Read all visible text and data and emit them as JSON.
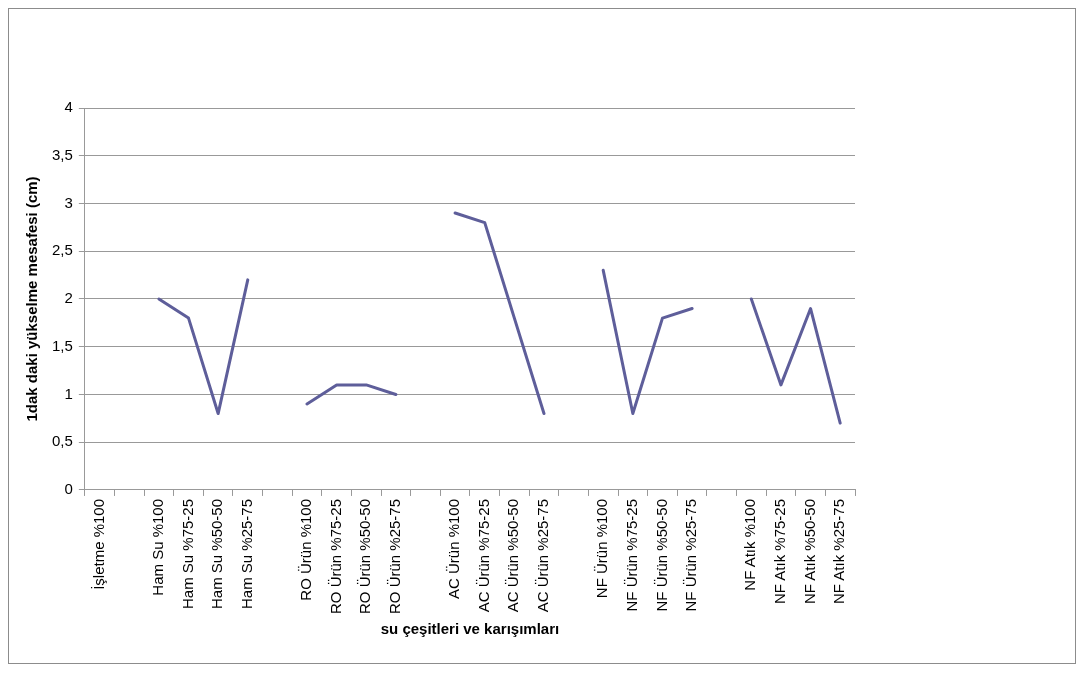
{
  "chart_data": {
    "type": "line",
    "xlabel": "su çeşitleri ve karışımları",
    "ylabel": "1dak daki yükselme mesafesi (cm)",
    "categories": [
      "İşletme %100",
      null,
      "Ham Su %100",
      "Ham Su %75-25",
      "Ham Su %50-50",
      "Ham Su %25-75",
      null,
      "RO Ürün %100",
      "RO Ürün %75-25",
      "RO Ürün %50-50",
      "RO Ürün %25-75",
      null,
      "AC Ürün %100",
      "AC Ürün %75-25",
      "AC Ürün %50-50",
      "AC Ürün %25-75",
      null,
      "NF Ürün %100",
      "NF Ürün %75-25",
      "NF Ürün %50-50",
      "NF Ürün %25-75",
      null,
      "NF Atık %100",
      "NF Atık %75-25",
      "NF Atık %50-50",
      "NF Atık %25-75"
    ],
    "series": [
      {
        "color": "#5e5e9a",
        "values": [
          null,
          null,
          2,
          1.8,
          0.8,
          2.2,
          null,
          0.9,
          1.1,
          1.1,
          1.0,
          null,
          2.9,
          2.8,
          1.8,
          0.8,
          null,
          2.3,
          0.8,
          1.8,
          1.9,
          null,
          2.0,
          1.1,
          1.9,
          0.7
        ]
      }
    ],
    "ylim": [
      0,
      4
    ],
    "yticks": [
      0,
      {
        "value": 0.5,
        "label": "0,5"
      },
      1,
      {
        "value": 1.5,
        "label": "1,5"
      },
      2,
      {
        "value": 2.5,
        "label": "2,5"
      },
      3,
      {
        "value": 3.5,
        "label": "3,5"
      },
      4
    ],
    "grid": "y",
    "legend": false,
    "marker": "none",
    "line_style": "solid"
  }
}
